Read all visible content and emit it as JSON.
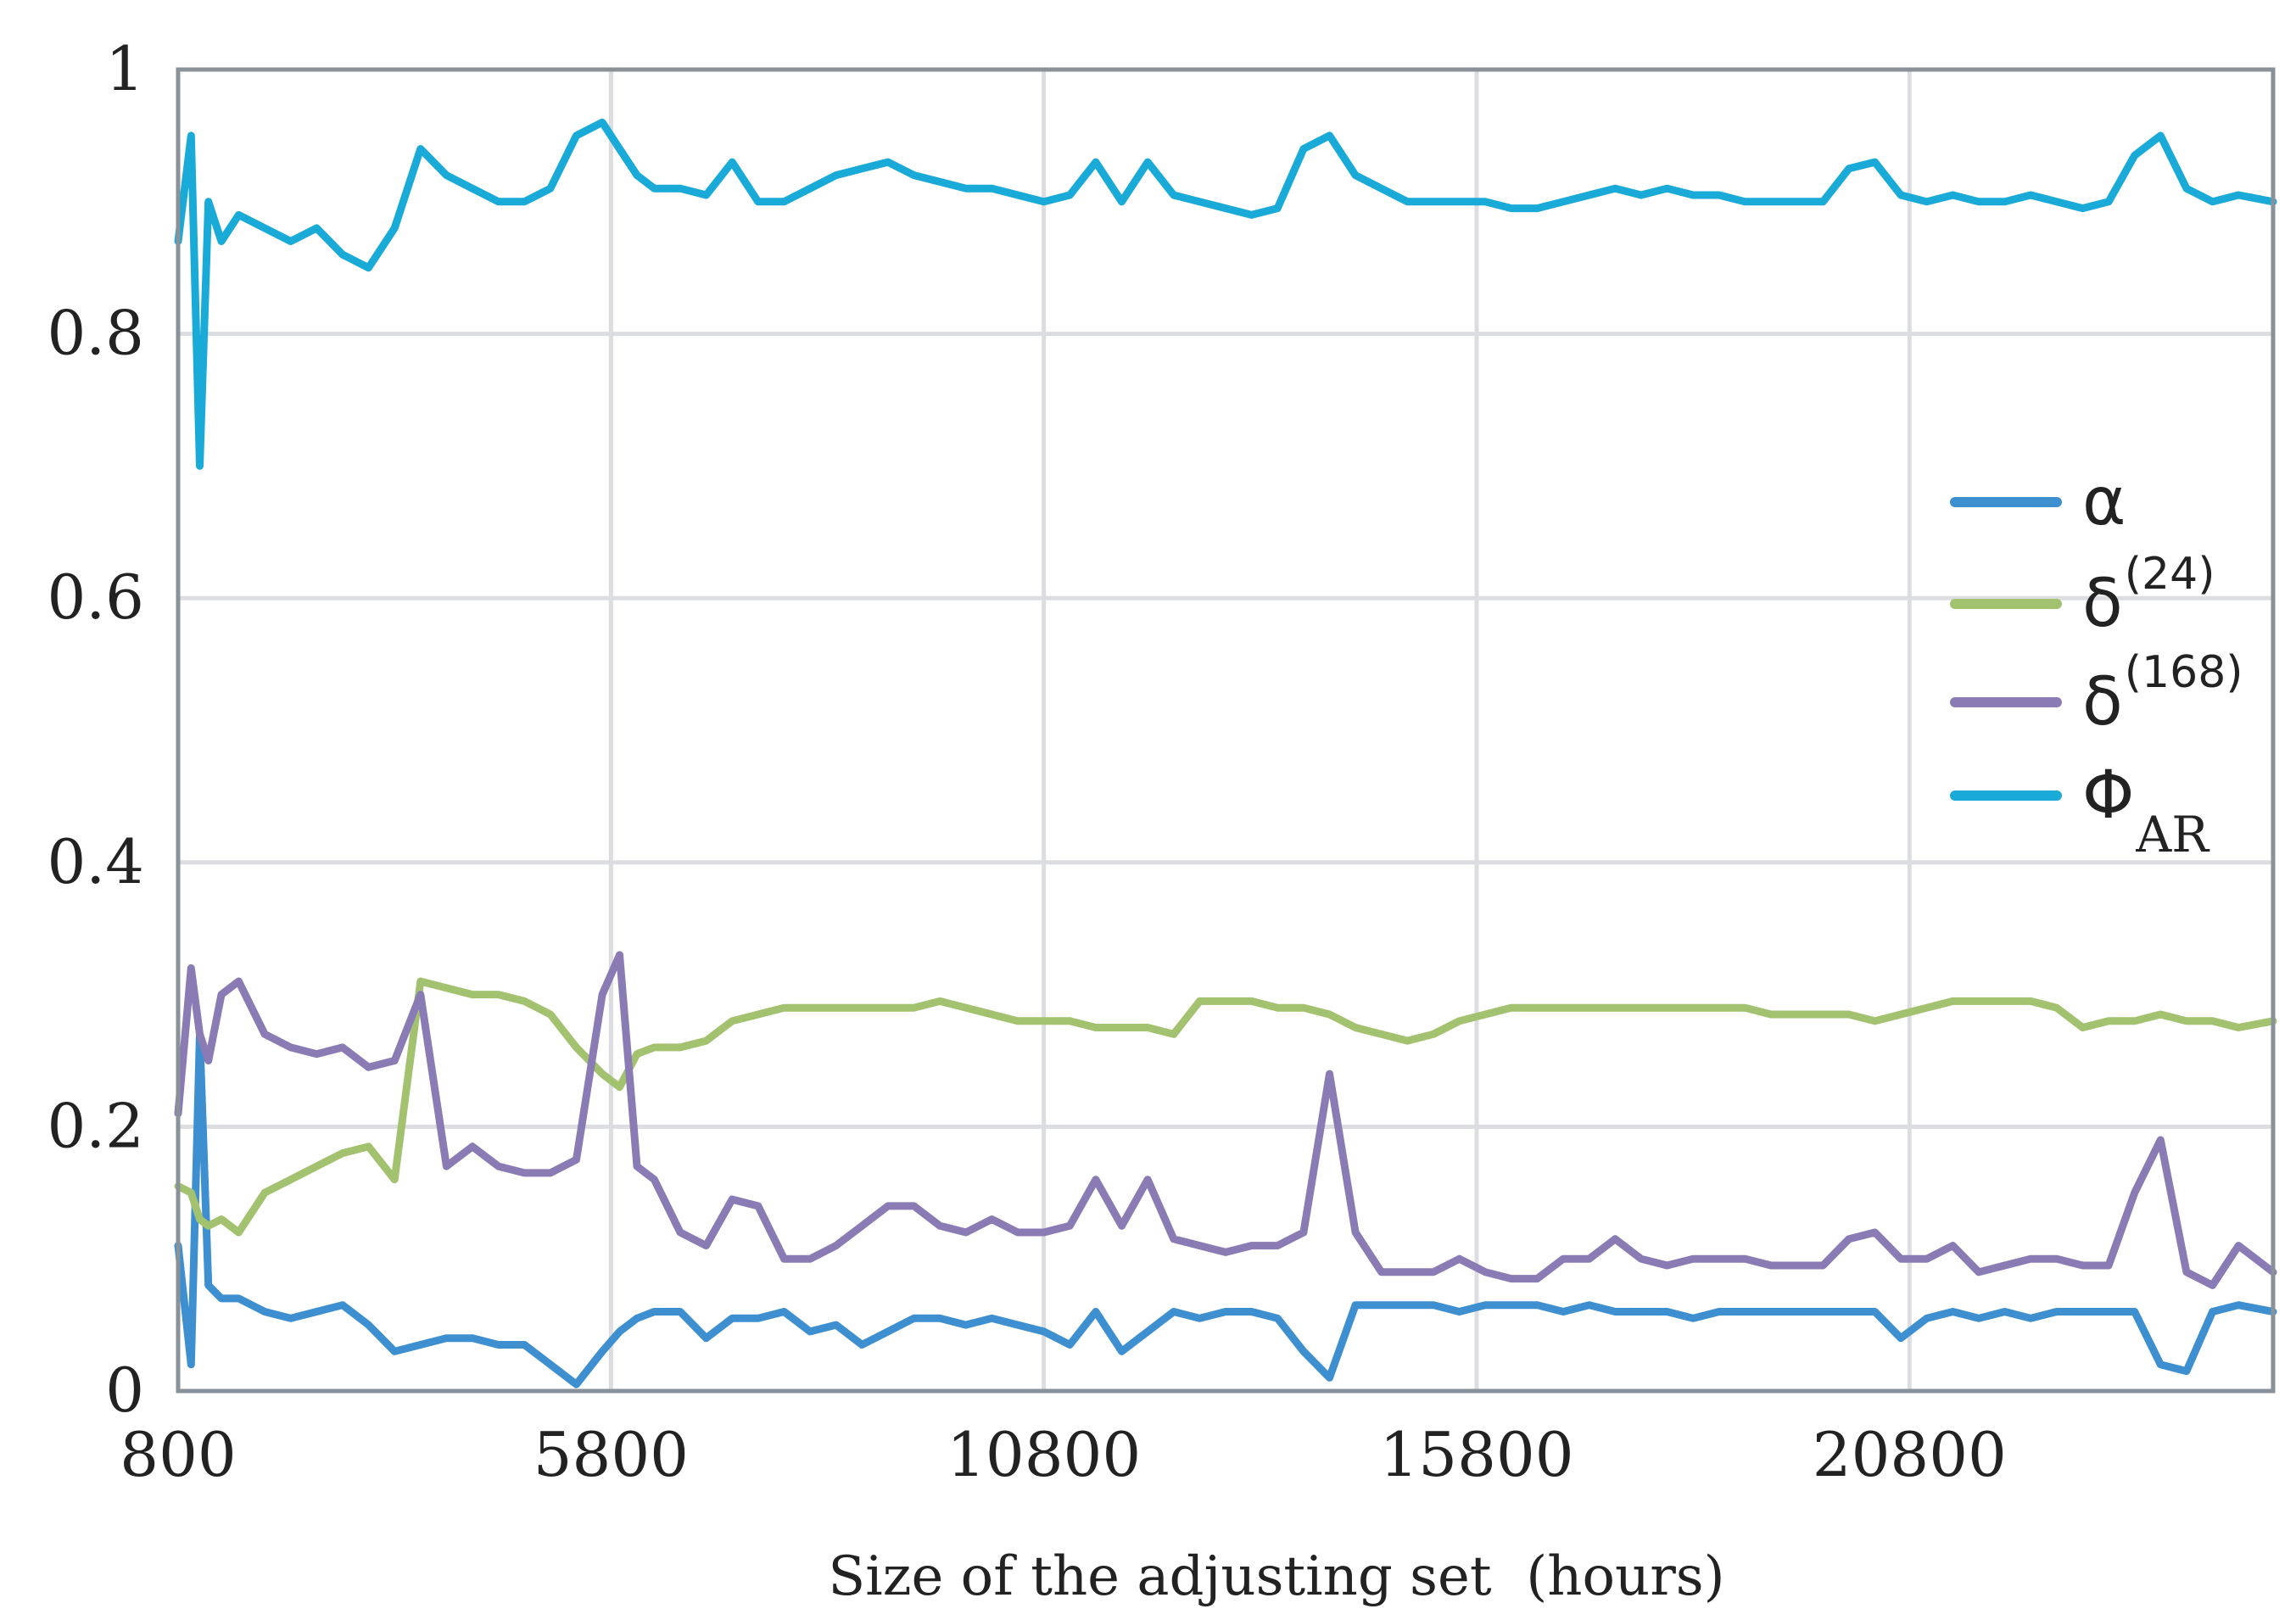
{
  "chart_data": {
    "type": "line",
    "title": "",
    "xlabel": "Size of the adjusting set  (hours)",
    "ylabel": "",
    "xlim": [
      800,
      25000
    ],
    "ylim": [
      0,
      1
    ],
    "grid": true,
    "legend_position": "right",
    "x_ticks": [
      800,
      5800,
      10800,
      15800,
      20800
    ],
    "x_tick_labels": [
      "800",
      "5800",
      "10800",
      "15800",
      "20800"
    ],
    "y_ticks": [
      0,
      0.2,
      0.4,
      0.6,
      0.8,
      1
    ],
    "y_tick_labels": [
      "0",
      "0.2",
      "0.4",
      "0.6",
      "0.8",
      "1"
    ],
    "x": [
      800,
      950,
      1050,
      1150,
      1300,
      1500,
      1800,
      2100,
      2400,
      2700,
      3000,
      3300,
      3600,
      3900,
      4200,
      4500,
      4800,
      5100,
      5400,
      5700,
      5900,
      6100,
      6300,
      6600,
      6900,
      7200,
      7500,
      7800,
      8100,
      8400,
      8700,
      9000,
      9300,
      9600,
      9900,
      10200,
      10500,
      10800,
      11100,
      11400,
      11700,
      12000,
      12300,
      12600,
      12900,
      13200,
      13500,
      13800,
      14100,
      14400,
      14700,
      15000,
      15300,
      15600,
      15900,
      16200,
      16500,
      16800,
      17100,
      17400,
      17700,
      18000,
      18300,
      18600,
      18900,
      19200,
      19500,
      19800,
      20100,
      20400,
      20700,
      21000,
      21300,
      21600,
      21900,
      22200,
      22500,
      22800,
      23100,
      23400,
      23700,
      24000,
      24300,
      24600,
      25000
    ],
    "series": [
      {
        "name": "α",
        "legend_label": "α",
        "legend_sup": "",
        "legend_sub": "",
        "color": "#3e8fd0",
        "values": [
          0.11,
          0.02,
          0.27,
          0.08,
          0.07,
          0.07,
          0.06,
          0.055,
          0.06,
          0.065,
          0.05,
          0.03,
          0.035,
          0.04,
          0.04,
          0.035,
          0.035,
          0.02,
          0.005,
          0.03,
          0.045,
          0.055,
          0.06,
          0.06,
          0.04,
          0.055,
          0.055,
          0.06,
          0.045,
          0.05,
          0.035,
          0.045,
          0.055,
          0.055,
          0.05,
          0.055,
          0.05,
          0.045,
          0.035,
          0.06,
          0.03,
          0.045,
          0.06,
          0.055,
          0.06,
          0.06,
          0.055,
          0.03,
          0.01,
          0.065,
          0.065,
          0.065,
          0.065,
          0.06,
          0.065,
          0.065,
          0.065,
          0.06,
          0.065,
          0.06,
          0.06,
          0.06,
          0.055,
          0.06,
          0.06,
          0.06,
          0.06,
          0.06,
          0.06,
          0.06,
          0.04,
          0.055,
          0.06,
          0.055,
          0.06,
          0.055,
          0.06,
          0.06,
          0.06,
          0.06,
          0.02,
          0.015,
          0.06,
          0.065,
          0.06
        ]
      },
      {
        "name": "δ(24)",
        "legend_label": "δ",
        "legend_sup": "(24)",
        "legend_sub": "",
        "color": "#a3c270",
        "values": [
          0.155,
          0.15,
          0.13,
          0.125,
          0.13,
          0.12,
          0.15,
          0.16,
          0.17,
          0.18,
          0.185,
          0.16,
          0.31,
          0.305,
          0.3,
          0.3,
          0.295,
          0.285,
          0.26,
          0.24,
          0.23,
          0.255,
          0.26,
          0.26,
          0.265,
          0.28,
          0.285,
          0.29,
          0.29,
          0.29,
          0.29,
          0.29,
          0.29,
          0.295,
          0.29,
          0.285,
          0.28,
          0.28,
          0.28,
          0.275,
          0.275,
          0.275,
          0.27,
          0.295,
          0.295,
          0.295,
          0.29,
          0.29,
          0.285,
          0.275,
          0.27,
          0.265,
          0.27,
          0.28,
          0.285,
          0.29,
          0.29,
          0.29,
          0.29,
          0.29,
          0.29,
          0.29,
          0.29,
          0.29,
          0.29,
          0.285,
          0.285,
          0.285,
          0.285,
          0.28,
          0.285,
          0.29,
          0.295,
          0.295,
          0.295,
          0.295,
          0.29,
          0.275,
          0.28,
          0.28,
          0.285,
          0.28,
          0.28,
          0.275,
          0.28
        ]
      },
      {
        "name": "δ(168)",
        "legend_label": "δ",
        "legend_sup": "(168)",
        "legend_sub": "",
        "color": "#8b7bb5",
        "values": [
          0.21,
          0.32,
          0.27,
          0.25,
          0.3,
          0.31,
          0.27,
          0.26,
          0.255,
          0.26,
          0.245,
          0.25,
          0.3,
          0.17,
          0.185,
          0.17,
          0.165,
          0.165,
          0.175,
          0.3,
          0.33,
          0.17,
          0.16,
          0.12,
          0.11,
          0.145,
          0.14,
          0.1,
          0.1,
          0.11,
          0.125,
          0.14,
          0.14,
          0.125,
          0.12,
          0.13,
          0.12,
          0.12,
          0.125,
          0.16,
          0.125,
          0.16,
          0.115,
          0.11,
          0.105,
          0.11,
          0.11,
          0.12,
          0.24,
          0.12,
          0.09,
          0.09,
          0.09,
          0.1,
          0.09,
          0.085,
          0.085,
          0.1,
          0.1,
          0.115,
          0.1,
          0.095,
          0.1,
          0.1,
          0.1,
          0.095,
          0.095,
          0.095,
          0.115,
          0.12,
          0.1,
          0.1,
          0.11,
          0.09,
          0.095,
          0.1,
          0.1,
          0.095,
          0.095,
          0.15,
          0.19,
          0.09,
          0.08,
          0.11,
          0.09
        ]
      },
      {
        "name": "ΦAR",
        "legend_label": "Φ",
        "legend_sup": "",
        "legend_sub": "AR",
        "color": "#1aaad8",
        "values": [
          0.87,
          0.95,
          0.7,
          0.9,
          0.87,
          0.89,
          0.88,
          0.87,
          0.88,
          0.86,
          0.85,
          0.88,
          0.94,
          0.92,
          0.91,
          0.9,
          0.9,
          0.91,
          0.95,
          0.96,
          0.94,
          0.92,
          0.91,
          0.91,
          0.905,
          0.93,
          0.9,
          0.9,
          0.91,
          0.92,
          0.925,
          0.93,
          0.92,
          0.915,
          0.91,
          0.91,
          0.905,
          0.9,
          0.905,
          0.93,
          0.9,
          0.93,
          0.905,
          0.9,
          0.895,
          0.89,
          0.895,
          0.94,
          0.95,
          0.92,
          0.91,
          0.9,
          0.9,
          0.9,
          0.9,
          0.895,
          0.895,
          0.9,
          0.905,
          0.91,
          0.905,
          0.91,
          0.905,
          0.905,
          0.9,
          0.9,
          0.9,
          0.9,
          0.925,
          0.93,
          0.905,
          0.9,
          0.905,
          0.9,
          0.9,
          0.905,
          0.9,
          0.895,
          0.9,
          0.935,
          0.95,
          0.91,
          0.9,
          0.905,
          0.9
        ]
      }
    ]
  }
}
